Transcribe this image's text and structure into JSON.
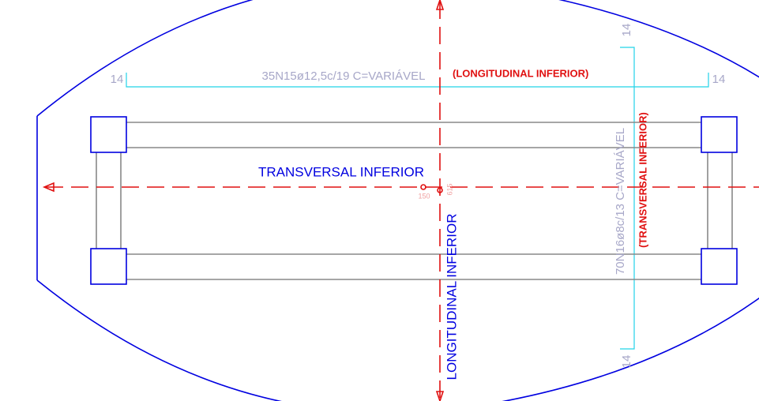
{
  "drawing": {
    "top_bar_label": "35N15ø12,5c/19 C=VARIÁVEL",
    "top_bar_tag": "(LONGITUDINAL INFERIOR)",
    "side_bar_label": "70N16ø8c/13 C=VARIÁVEL",
    "side_bar_tag": "(TRANSVERSAL INFERIOR)",
    "horizontal_axis_label": "TRANSVERSAL INFERIOR",
    "vertical_axis_label": "LONGITUDINAL INFERIOR",
    "hook_left": "14",
    "hook_right": "14",
    "hook_top": "14",
    "hook_bottom": "14",
    "point_left": "150",
    "point_right": "615"
  }
}
